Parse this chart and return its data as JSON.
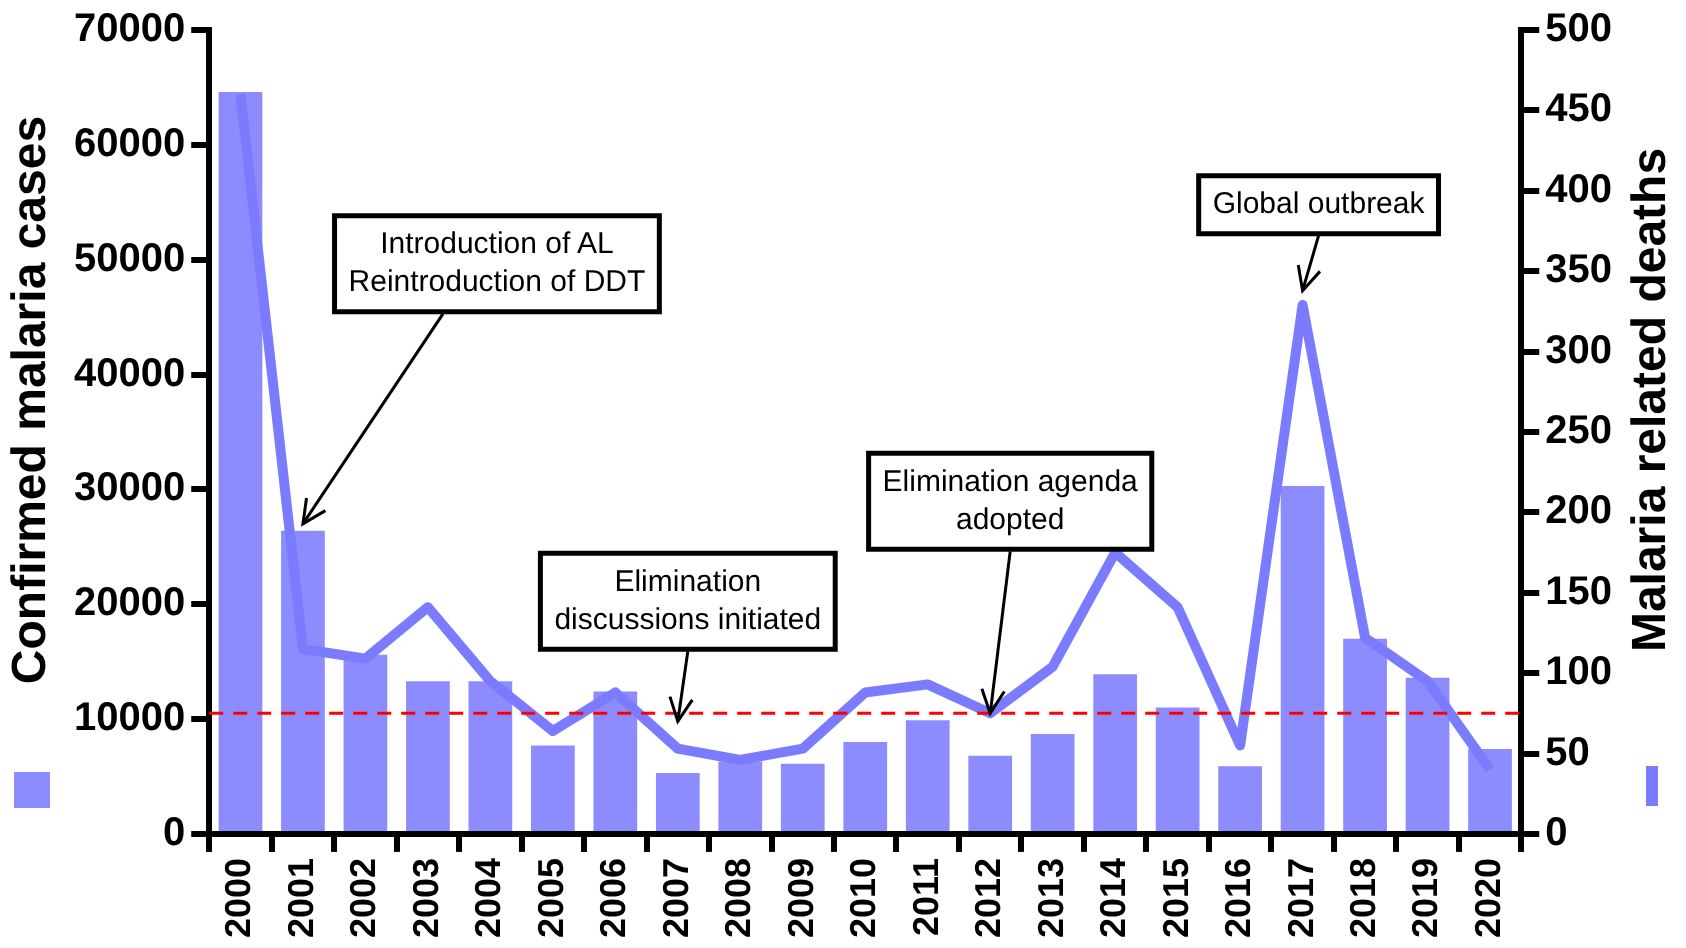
{
  "chart_data": {
    "type": "bar",
    "ylabel": "Confirmed malaria cases",
    "y2label": "Malaria related deaths",
    "categories": [
      "2000",
      "2001",
      "2002",
      "2003",
      "2004",
      "2005",
      "2006",
      "2007",
      "2008",
      "2009",
      "2010",
      "2011",
      "2012",
      "2013",
      "2014",
      "2015",
      "2016",
      "2017",
      "2018",
      "2019",
      "2020"
    ],
    "series": [
      {
        "color": "#8c8cff",
        "values": [
          64600,
          26400,
          15600,
          13300,
          13300,
          7700,
          12400,
          5300,
          6300,
          6100,
          8000,
          9900,
          6800,
          8700,
          13900,
          11000,
          5900,
          30300,
          17000,
          13600,
          7400
        ]
      },
      {
        "type": "line",
        "axis": "y2",
        "color": "#7b7bff",
        "values": [
          460,
          115,
          109,
          141,
          95,
          64,
          88,
          53,
          46,
          53,
          88,
          93,
          75,
          104,
          175,
          141,
          55,
          329,
          122,
          95,
          40
        ]
      }
    ],
    "ylim": [
      0,
      70000
    ],
    "yticks": [
      0,
      10000,
      20000,
      30000,
      40000,
      50000,
      60000,
      70000
    ],
    "y2lim": [
      0,
      500
    ],
    "y2ticks": [
      0,
      50,
      100,
      150,
      200,
      250,
      300,
      350,
      400,
      450,
      500
    ],
    "ref_lines": [
      {
        "axis": "y",
        "value": 10500,
        "color": "#ff0000",
        "line_style": "dashed"
      }
    ],
    "annotations": [
      {
        "text": "Introduction of AL\nReintroduction of DDT",
        "x": "2001",
        "y": 27000
      },
      {
        "text": "Elimination\ndiscussions initiated",
        "x": "2007",
        "y": 9800
      },
      {
        "text": "Elimination agenda\nadopted",
        "x": "2012",
        "y": 10500
      },
      {
        "text": "Global outbreak",
        "x": "2017",
        "y": 47300
      }
    ],
    "grid": false,
    "legend": false
  }
}
